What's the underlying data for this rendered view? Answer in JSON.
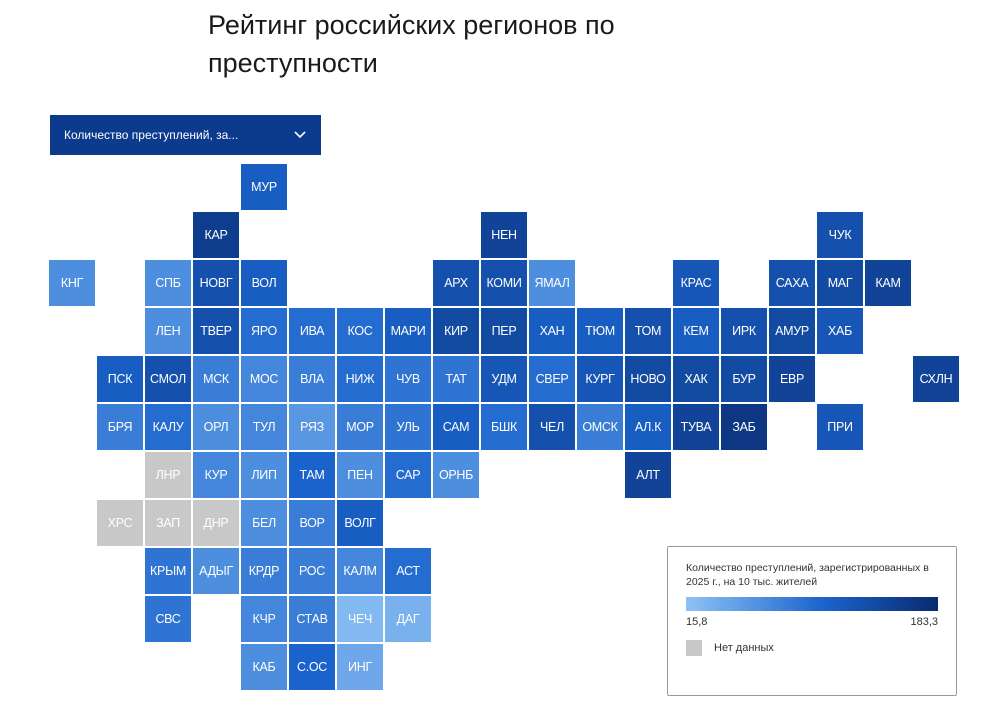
{
  "title": "Рейтинг российских регионов по преступности",
  "dropdown": {
    "selected": "Количество преступлений, за..."
  },
  "colors": {
    "min": "#8dc2f5",
    "max": "#0a2a6e",
    "nodata": "#c8c8c8",
    "dropdown_bg": "#0c3a8c"
  },
  "legend": {
    "title": "Количество преступлений, зарегистрированных в 2025 г., на 10 тыс. жителей",
    "min": "15,8",
    "max": "183,3",
    "nodata": "Нет данных"
  },
  "regions": [
    {
      "label": "МУР",
      "col": 5,
      "row": 0,
      "level": 0.6
    },
    {
      "label": "КАР",
      "col": 4,
      "row": 1,
      "level": 0.85
    },
    {
      "label": "НЕН",
      "col": 10,
      "row": 1,
      "level": 0.8
    },
    {
      "label": "ЧУК",
      "col": 17,
      "row": 1,
      "level": 0.7
    },
    {
      "label": "КНГ",
      "col": 1,
      "row": 2,
      "level": 0.3
    },
    {
      "label": "СПБ",
      "col": 3,
      "row": 2,
      "level": 0.3
    },
    {
      "label": "НОВГ",
      "col": 4,
      "row": 2,
      "level": 0.7
    },
    {
      "label": "ВОЛ",
      "col": 5,
      "row": 2,
      "level": 0.6
    },
    {
      "label": "АРХ",
      "col": 9,
      "row": 2,
      "level": 0.7
    },
    {
      "label": "КОМИ",
      "col": 10,
      "row": 2,
      "level": 0.7
    },
    {
      "label": "ЯМАЛ",
      "col": 11,
      "row": 2,
      "level": 0.3
    },
    {
      "label": "КРАС",
      "col": 14,
      "row": 2,
      "level": 0.65
    },
    {
      "label": "САХА",
      "col": 16,
      "row": 2,
      "level": 0.7
    },
    {
      "label": "МАГ",
      "col": 17,
      "row": 2,
      "level": 0.75
    },
    {
      "label": "КАМ",
      "col": 18,
      "row": 2,
      "level": 0.8
    },
    {
      "label": "ЛЕН",
      "col": 3,
      "row": 3,
      "level": 0.3
    },
    {
      "label": "ТВЕР",
      "col": 4,
      "row": 3,
      "level": 0.7
    },
    {
      "label": "ЯРО",
      "col": 5,
      "row": 3,
      "level": 0.5
    },
    {
      "label": "ИВА",
      "col": 6,
      "row": 3,
      "level": 0.5
    },
    {
      "label": "КОС",
      "col": 7,
      "row": 3,
      "level": 0.5
    },
    {
      "label": "МАРИ",
      "col": 8,
      "row": 3,
      "level": 0.6
    },
    {
      "label": "КИР",
      "col": 9,
      "row": 3,
      "level": 0.75
    },
    {
      "label": "ПЕР",
      "col": 10,
      "row": 3,
      "level": 0.75
    },
    {
      "label": "ХАН",
      "col": 11,
      "row": 3,
      "level": 0.6
    },
    {
      "label": "ТЮМ",
      "col": 12,
      "row": 3,
      "level": 0.6
    },
    {
      "label": "ТОМ",
      "col": 13,
      "row": 3,
      "level": 0.7
    },
    {
      "label": "КЕМ",
      "col": 14,
      "row": 3,
      "level": 0.6
    },
    {
      "label": "ИРК",
      "col": 15,
      "row": 3,
      "level": 0.7
    },
    {
      "label": "АМУР",
      "col": 16,
      "row": 3,
      "level": 0.75
    },
    {
      "label": "ХАБ",
      "col": 17,
      "row": 3,
      "level": 0.65
    },
    {
      "label": "ПСК",
      "col": 2,
      "row": 4,
      "level": 0.6
    },
    {
      "label": "СМОЛ",
      "col": 3,
      "row": 4,
      "level": 0.7
    },
    {
      "label": "МСК",
      "col": 4,
      "row": 4,
      "level": 0.4
    },
    {
      "label": "МОС",
      "col": 5,
      "row": 4,
      "level": 0.35
    },
    {
      "label": "ВЛА",
      "col": 6,
      "row": 4,
      "level": 0.4
    },
    {
      "label": "НИЖ",
      "col": 7,
      "row": 4,
      "level": 0.5
    },
    {
      "label": "ЧУВ",
      "col": 8,
      "row": 4,
      "level": 0.45
    },
    {
      "label": "ТАТ",
      "col": 9,
      "row": 4,
      "level": 0.45
    },
    {
      "label": "УДМ",
      "col": 10,
      "row": 4,
      "level": 0.65
    },
    {
      "label": "СВЕР",
      "col": 11,
      "row": 4,
      "level": 0.5
    },
    {
      "label": "КУРГ",
      "col": 12,
      "row": 4,
      "level": 0.65
    },
    {
      "label": "НОВО",
      "col": 13,
      "row": 4,
      "level": 0.75
    },
    {
      "label": "ХАК",
      "col": 14,
      "row": 4,
      "level": 0.75
    },
    {
      "label": "БУР",
      "col": 15,
      "row": 4,
      "level": 0.75
    },
    {
      "label": "ЕВР",
      "col": 16,
      "row": 4,
      "level": 0.8
    },
    {
      "label": "СХЛН",
      "col": 19,
      "row": 4,
      "level": 0.8
    },
    {
      "label": "БРЯ",
      "col": 2,
      "row": 5,
      "level": 0.4
    },
    {
      "label": "КАЛУ",
      "col": 3,
      "row": 5,
      "level": 0.5
    },
    {
      "label": "ОРЛ",
      "col": 4,
      "row": 5,
      "level": 0.3
    },
    {
      "label": "ТУЛ",
      "col": 5,
      "row": 5,
      "level": 0.35
    },
    {
      "label": "РЯЗ",
      "col": 6,
      "row": 5,
      "level": 0.25
    },
    {
      "label": "МОР",
      "col": 7,
      "row": 5,
      "level": 0.4
    },
    {
      "label": "УЛЬ",
      "col": 8,
      "row": 5,
      "level": 0.45
    },
    {
      "label": "САМ",
      "col": 9,
      "row": 5,
      "level": 0.6
    },
    {
      "label": "БШК",
      "col": 10,
      "row": 5,
      "level": 0.5
    },
    {
      "label": "ЧЕЛ",
      "col": 11,
      "row": 5,
      "level": 0.7
    },
    {
      "label": "ОМСК",
      "col": 12,
      "row": 5,
      "level": 0.4
    },
    {
      "label": "АЛ.К",
      "col": 13,
      "row": 5,
      "level": 0.6
    },
    {
      "label": "ТУВА",
      "col": 14,
      "row": 5,
      "level": 0.8
    },
    {
      "label": "ЗАБ",
      "col": 15,
      "row": 5,
      "level": 0.9
    },
    {
      "label": "ПРИ",
      "col": 17,
      "row": 5,
      "level": 0.65
    },
    {
      "label": "ЛНР",
      "col": 3,
      "row": 6,
      "level": null
    },
    {
      "label": "КУР",
      "col": 4,
      "row": 6,
      "level": 0.35
    },
    {
      "label": "ЛИП",
      "col": 5,
      "row": 6,
      "level": 0.3
    },
    {
      "label": "ТАМ",
      "col": 6,
      "row": 6,
      "level": 0.55
    },
    {
      "label": "ПЕН",
      "col": 7,
      "row": 6,
      "level": 0.3
    },
    {
      "label": "САР",
      "col": 8,
      "row": 6,
      "level": 0.5
    },
    {
      "label": "ОРНБ",
      "col": 9,
      "row": 6,
      "level": 0.3
    },
    {
      "label": "АЛТ",
      "col": 13,
      "row": 6,
      "level": 0.8
    },
    {
      "label": "ХРС",
      "col": 2,
      "row": 7,
      "level": null
    },
    {
      "label": "ЗАП",
      "col": 3,
      "row": 7,
      "level": null
    },
    {
      "label": "ДНР",
      "col": 4,
      "row": 7,
      "level": null
    },
    {
      "label": "БЕЛ",
      "col": 5,
      "row": 7,
      "level": 0.3
    },
    {
      "label": "ВОР",
      "col": 6,
      "row": 7,
      "level": 0.4
    },
    {
      "label": "ВОЛГ",
      "col": 7,
      "row": 7,
      "level": 0.6
    },
    {
      "label": "КРЫМ",
      "col": 3,
      "row": 8,
      "level": 0.45
    },
    {
      "label": "АДЫГ",
      "col": 4,
      "row": 8,
      "level": 0.3
    },
    {
      "label": "КРДР",
      "col": 5,
      "row": 8,
      "level": 0.4
    },
    {
      "label": "РОС",
      "col": 6,
      "row": 8,
      "level": 0.4
    },
    {
      "label": "КАЛМ",
      "col": 7,
      "row": 8,
      "level": 0.35
    },
    {
      "label": "АСТ",
      "col": 8,
      "row": 8,
      "level": 0.5
    },
    {
      "label": "СВС",
      "col": 3,
      "row": 9,
      "level": 0.45
    },
    {
      "label": "КЧР",
      "col": 5,
      "row": 9,
      "level": 0.35
    },
    {
      "label": "СТАВ",
      "col": 6,
      "row": 9,
      "level": 0.4
    },
    {
      "label": "ЧЕЧ",
      "col": 7,
      "row": 9,
      "level": 0.05
    },
    {
      "label": "ДАГ",
      "col": 8,
      "row": 9,
      "level": 0.1
    },
    {
      "label": "КАБ",
      "col": 5,
      "row": 10,
      "level": 0.3
    },
    {
      "label": "С.ОС",
      "col": 6,
      "row": 10,
      "level": 0.55
    },
    {
      "label": "ИНГ",
      "col": 7,
      "row": 10,
      "level": 0.15
    }
  ]
}
